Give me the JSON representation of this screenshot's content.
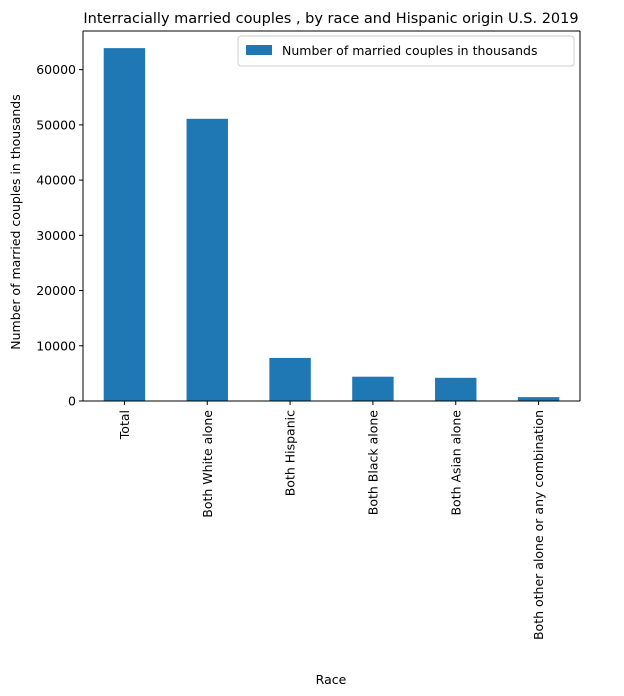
{
  "chart_data": {
    "type": "bar",
    "title": "Interracially married couples , by race and Hispanic origin U.S. 2019",
    "xlabel": "Race",
    "ylabel": "Number of married couples in thousands",
    "categories": [
      "Total",
      "Both White alone",
      "Both Hispanic",
      "Both Black alone",
      "Both Asian alone",
      "Both other alone or any combination"
    ],
    "series": [
      {
        "name": "Number of married couples in thousands",
        "values": [
          63900,
          51100,
          7800,
          4400,
          4200,
          700
        ]
      }
    ],
    "ylim": [
      0,
      67000
    ],
    "yticks": [
      0,
      10000,
      20000,
      30000,
      40000,
      50000,
      60000
    ],
    "legend_position": "top-right",
    "grid": false,
    "bar_color": "#1f77b4"
  }
}
